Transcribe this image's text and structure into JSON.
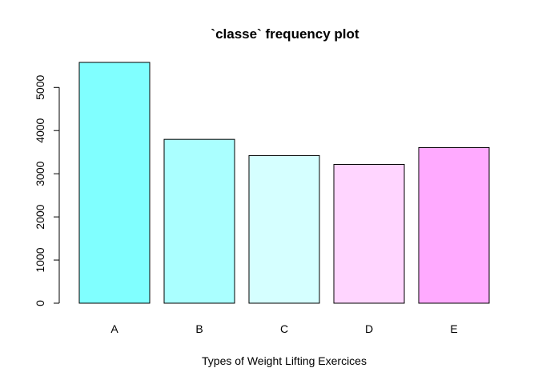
{
  "chart_data": {
    "type": "bar",
    "title": "`classe` frequency plot",
    "xlabel": "Types of Weight Lifting Exercices",
    "ylabel": "",
    "categories": [
      "A",
      "B",
      "C",
      "D",
      "E"
    ],
    "values": [
      5580,
      3797,
      3422,
      3216,
      3607
    ],
    "colors": [
      "#80FFFF",
      "#AAFFFF",
      "#D5FFFF",
      "#FFD5FF",
      "#FFAAFF"
    ],
    "ylim": [
      0,
      5580
    ],
    "yticks": [
      0,
      1000,
      2000,
      3000,
      4000,
      5000
    ],
    "grid": false,
    "legend": "none"
  }
}
